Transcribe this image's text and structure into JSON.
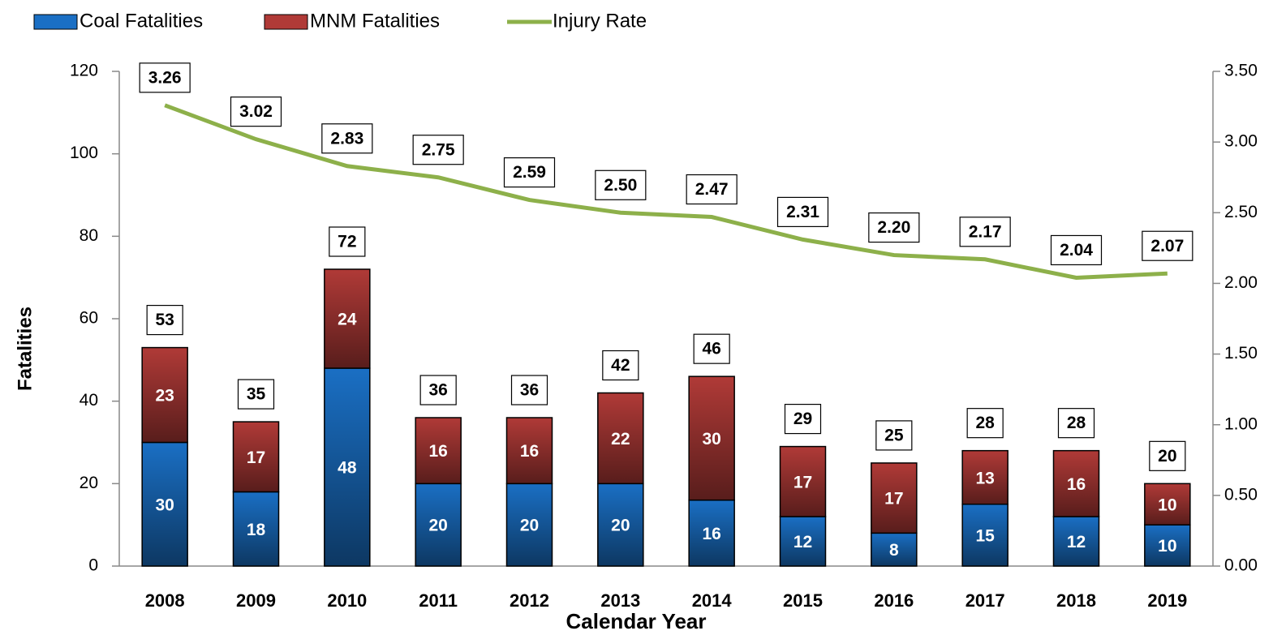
{
  "chart_data": {
    "type": "bar",
    "stacked": true,
    "x_label": "Calendar Year",
    "y_label": "Fatalities",
    "categories": [
      "2008",
      "2009",
      "2010",
      "2011",
      "2012",
      "2013",
      "2014",
      "2015",
      "2016",
      "2017",
      "2018",
      "2019"
    ],
    "series": [
      {
        "name": "Coal Fatalities",
        "color": "#1a6fc4",
        "values": [
          30,
          18,
          48,
          20,
          20,
          20,
          16,
          12,
          8,
          15,
          12,
          10
        ]
      },
      {
        "name": "MNM Fatalities",
        "color": "#b03a37",
        "values": [
          23,
          17,
          24,
          16,
          16,
          22,
          30,
          17,
          17,
          13,
          16,
          10
        ]
      },
      {
        "name": "Injury Rate",
        "type": "line",
        "axis": "y2",
        "color": "#8db04a",
        "values": [
          3.26,
          3.02,
          2.83,
          2.75,
          2.59,
          2.5,
          2.47,
          2.31,
          2.2,
          2.17,
          2.04,
          2.07
        ],
        "value_labels": [
          "3.26",
          "3.02",
          "2.83",
          "2.75",
          "2.59",
          "2.50",
          "2.47",
          "2.31",
          "2.20",
          "2.17",
          "2.04",
          "2.07"
        ]
      }
    ],
    "totals": [
      53,
      35,
      72,
      36,
      36,
      42,
      46,
      29,
      25,
      28,
      28,
      20
    ],
    "ylim": [
      0,
      120
    ],
    "yticks": [
      0,
      20,
      40,
      60,
      80,
      100,
      120
    ],
    "y2lim": [
      0,
      3.5
    ],
    "y2ticks": [
      {
        "value": 0,
        "label": "0.00"
      },
      {
        "value": 0.5,
        "label": "0.50"
      },
      {
        "value": 1,
        "label": "1.00"
      },
      {
        "value": 1.5,
        "label": "1.50"
      },
      {
        "value": 2,
        "label": "2.00"
      },
      {
        "value": 2.5,
        "label": "2.50"
      },
      {
        "value": 3,
        "label": "3.00"
      },
      {
        "value": 3.5,
        "label": "3.50"
      }
    ],
    "legend": "top-left"
  }
}
